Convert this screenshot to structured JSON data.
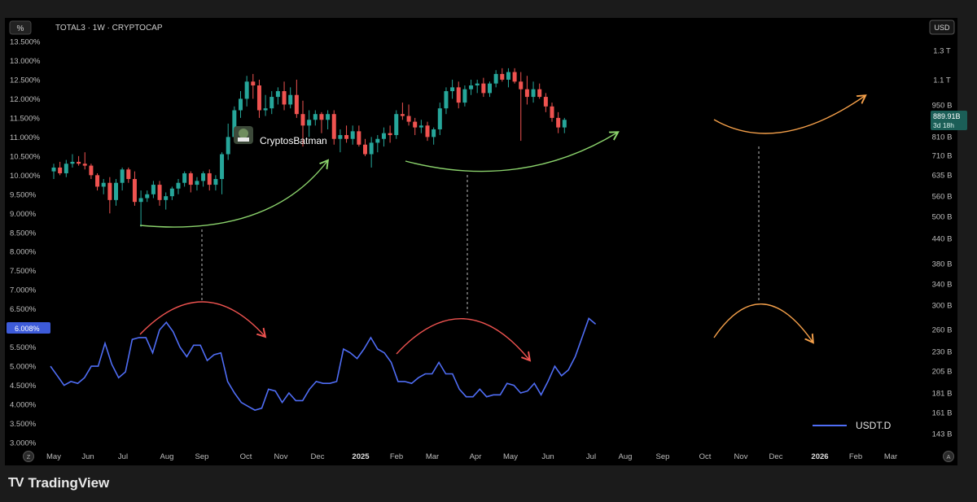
{
  "header": {
    "percent_button": "%",
    "symbol_title": "TOTAL3 · 1W · CRYPTOCAP",
    "currency_button": "USD"
  },
  "watermark": {
    "name": "CryptosBatman"
  },
  "price_label": {
    "value": "889.91B",
    "countdown": "3d 18h"
  },
  "usdt_label": {
    "value": "6.008%"
  },
  "legend": {
    "series_name": "USDT.D"
  },
  "footer": {
    "brand_logo": "TV",
    "brand_name": "TradingView"
  },
  "colors": {
    "up": "#26a69a",
    "down": "#ef5350",
    "usdt_line": "#4f6df5",
    "green_arrow": "#8bd36c",
    "red_arrow": "#ef5350",
    "orange_arrow": "#f5a04a",
    "background": "#000000"
  },
  "icons": {
    "left_corner": "Z",
    "right_corner": "A"
  },
  "chart_data": {
    "type": "candlestick+line",
    "title": "TOTAL3 · 1W · CRYPTOCAP",
    "x_ticks": [
      "May",
      "Jun",
      "Jul",
      "Aug",
      "Sep",
      "Oct",
      "Nov",
      "Dec",
      "2025",
      "Feb",
      "Mar",
      "Apr",
      "May",
      "Jun",
      "Jul",
      "Aug",
      "Sep",
      "Oct",
      "Nov",
      "Dec",
      "2026",
      "Feb",
      "Mar"
    ],
    "left_axis": {
      "unit": "%",
      "ticks": [
        "13.500%",
        "13.000%",
        "12.500%",
        "12.000%",
        "11.500%",
        "11.000%",
        "10.500%",
        "10.000%",
        "9.500%",
        "9.000%",
        "8.500%",
        "8.000%",
        "7.500%",
        "7.000%",
        "6.500%",
        "6.000%",
        "5.500%",
        "5.000%",
        "4.500%",
        "4.000%",
        "3.500%",
        "3.000%"
      ],
      "range": [
        3.0,
        13.5
      ]
    },
    "right_axis": {
      "unit": "USD",
      "scale": "log",
      "ticks": [
        "1.3 T",
        "1.1 T",
        "950 B",
        "810 B",
        "710 B",
        "635 B",
        "560 B",
        "500 B",
        "440 B",
        "380 B",
        "340 B",
        "300 B",
        "260 B",
        "230 B",
        "205 B",
        "181 B",
        "161 B",
        "143 B"
      ]
    },
    "series": [
      {
        "name": "TOTAL3",
        "kind": "candles",
        "candles": [
          [
            10.1,
            10.3,
            9.9,
            10.2
          ],
          [
            10.2,
            10.35,
            10.0,
            10.05
          ],
          [
            10.05,
            10.4,
            9.95,
            10.3
          ],
          [
            10.3,
            10.55,
            10.2,
            10.35
          ],
          [
            10.35,
            10.5,
            10.25,
            10.3
          ],
          [
            10.3,
            10.6,
            10.15,
            10.25
          ],
          [
            10.25,
            10.3,
            9.9,
            10.0
          ],
          [
            10.0,
            10.05,
            9.6,
            9.7
          ],
          [
            9.7,
            9.9,
            9.5,
            9.8
          ],
          [
            9.8,
            9.95,
            9.0,
            9.35
          ],
          [
            9.35,
            9.9,
            9.2,
            9.8
          ],
          [
            9.8,
            10.2,
            9.6,
            10.15
          ],
          [
            10.15,
            10.2,
            9.8,
            9.9
          ],
          [
            9.9,
            10.1,
            9.2,
            9.3
          ],
          [
            9.3,
            9.6,
            8.65,
            9.4
          ],
          [
            9.4,
            9.6,
            9.3,
            9.5
          ],
          [
            9.5,
            9.85,
            9.4,
            9.75
          ],
          [
            9.75,
            9.85,
            9.2,
            9.35
          ],
          [
            9.35,
            9.55,
            9.1,
            9.45
          ],
          [
            9.45,
            9.7,
            9.35,
            9.65
          ],
          [
            9.65,
            9.9,
            9.5,
            9.8
          ],
          [
            9.8,
            10.1,
            9.7,
            10.05
          ],
          [
            10.05,
            10.1,
            9.55,
            9.75
          ],
          [
            9.75,
            9.95,
            9.6,
            9.85
          ],
          [
            9.85,
            10.1,
            9.7,
            10.05
          ],
          [
            10.05,
            10.15,
            9.6,
            9.75
          ],
          [
            9.75,
            10.0,
            9.6,
            9.9
          ],
          [
            9.9,
            10.6,
            9.5,
            10.55
          ],
          [
            10.55,
            11.35,
            10.4,
            11.0
          ],
          [
            11.0,
            11.8,
            10.9,
            11.7
          ],
          [
            11.7,
            12.2,
            11.5,
            12.0
          ],
          [
            12.0,
            12.6,
            11.8,
            12.45
          ],
          [
            12.45,
            12.65,
            12.0,
            12.35
          ],
          [
            12.35,
            12.5,
            11.5,
            11.7
          ],
          [
            11.7,
            12.1,
            11.55,
            11.75
          ],
          [
            11.75,
            12.2,
            11.6,
            12.05
          ],
          [
            12.05,
            12.3,
            11.85,
            12.2
          ],
          [
            12.2,
            12.45,
            11.7,
            11.85
          ],
          [
            11.85,
            12.3,
            11.75,
            12.1
          ],
          [
            12.1,
            12.5,
            11.5,
            11.6
          ],
          [
            11.6,
            11.95,
            10.75,
            11.3
          ],
          [
            11.3,
            11.7,
            11.0,
            11.45
          ],
          [
            11.45,
            11.7,
            11.3,
            11.6
          ],
          [
            11.6,
            11.65,
            11.1,
            11.45
          ],
          [
            11.45,
            11.7,
            11.2,
            11.6
          ],
          [
            11.6,
            11.7,
            10.8,
            10.95
          ],
          [
            10.95,
            11.2,
            10.6,
            11.05
          ],
          [
            11.05,
            11.3,
            10.85,
            10.95
          ],
          [
            10.95,
            11.3,
            10.8,
            11.15
          ],
          [
            11.15,
            11.3,
            10.75,
            10.8
          ],
          [
            10.8,
            10.95,
            10.5,
            10.55
          ],
          [
            10.55,
            11.0,
            10.2,
            10.85
          ],
          [
            10.85,
            11.05,
            10.6,
            10.95
          ],
          [
            10.95,
            11.25,
            10.75,
            11.1
          ],
          [
            11.1,
            11.3,
            10.85,
            11.05
          ],
          [
            11.05,
            11.7,
            10.95,
            11.6
          ],
          [
            11.6,
            11.9,
            11.45,
            11.55
          ],
          [
            11.55,
            11.85,
            11.3,
            11.4
          ],
          [
            11.4,
            11.5,
            11.05,
            11.25
          ],
          [
            11.25,
            11.45,
            11.1,
            11.3
          ],
          [
            11.3,
            11.4,
            10.9,
            11.0
          ],
          [
            11.0,
            11.25,
            10.8,
            11.2
          ],
          [
            11.2,
            11.9,
            11.05,
            11.75
          ],
          [
            11.75,
            12.3,
            11.6,
            12.2
          ],
          [
            12.2,
            12.5,
            12.0,
            12.3
          ],
          [
            12.3,
            12.45,
            11.75,
            11.9
          ],
          [
            11.9,
            12.35,
            11.8,
            12.25
          ],
          [
            12.25,
            12.5,
            12.1,
            12.35
          ],
          [
            12.35,
            12.5,
            12.15,
            12.4
          ],
          [
            12.4,
            12.55,
            12.05,
            12.15
          ],
          [
            12.15,
            12.45,
            12.05,
            12.4
          ],
          [
            12.4,
            12.75,
            12.3,
            12.65
          ],
          [
            12.65,
            12.8,
            12.45,
            12.5
          ],
          [
            12.5,
            12.8,
            12.3,
            12.7
          ],
          [
            12.7,
            12.8,
            12.4,
            12.45
          ],
          [
            12.45,
            12.7,
            10.9,
            12.25
          ],
          [
            12.25,
            12.6,
            11.85,
            12.05
          ],
          [
            12.05,
            12.45,
            11.9,
            12.25
          ],
          [
            12.25,
            12.4,
            12.0,
            12.05
          ],
          [
            12.05,
            12.15,
            11.65,
            11.8
          ],
          [
            11.8,
            11.9,
            11.4,
            11.5
          ],
          [
            11.5,
            11.65,
            11.1,
            11.25
          ],
          [
            11.25,
            11.5,
            11.1,
            11.45
          ]
        ]
      },
      {
        "name": "USDT.D",
        "kind": "line",
        "values": [
          5.0,
          4.75,
          4.5,
          4.6,
          4.55,
          4.7,
          5.0,
          5.0,
          5.6,
          5.05,
          4.7,
          4.85,
          5.7,
          5.75,
          5.75,
          5.35,
          5.95,
          6.15,
          5.9,
          5.5,
          5.25,
          5.55,
          5.55,
          5.15,
          5.3,
          5.35,
          4.6,
          4.3,
          4.05,
          3.95,
          3.85,
          3.9,
          4.4,
          4.35,
          4.05,
          4.3,
          4.1,
          4.1,
          4.4,
          4.6,
          4.55,
          4.55,
          4.6,
          5.45,
          5.35,
          5.2,
          5.45,
          5.75,
          5.45,
          5.35,
          5.1,
          4.6,
          4.6,
          4.55,
          4.7,
          4.8,
          4.8,
          5.1,
          4.8,
          4.8,
          4.4,
          4.2,
          4.2,
          4.4,
          4.2,
          4.25,
          4.25,
          4.55,
          4.5,
          4.3,
          4.35,
          4.55,
          4.25,
          4.6,
          5.0,
          4.75,
          4.9,
          5.25,
          5.75,
          6.25,
          6.1
        ]
      }
    ],
    "annotations": [
      "curved arrows",
      "dashed vertical guides"
    ],
    "legend": "bottom-right",
    "grid": false
  }
}
